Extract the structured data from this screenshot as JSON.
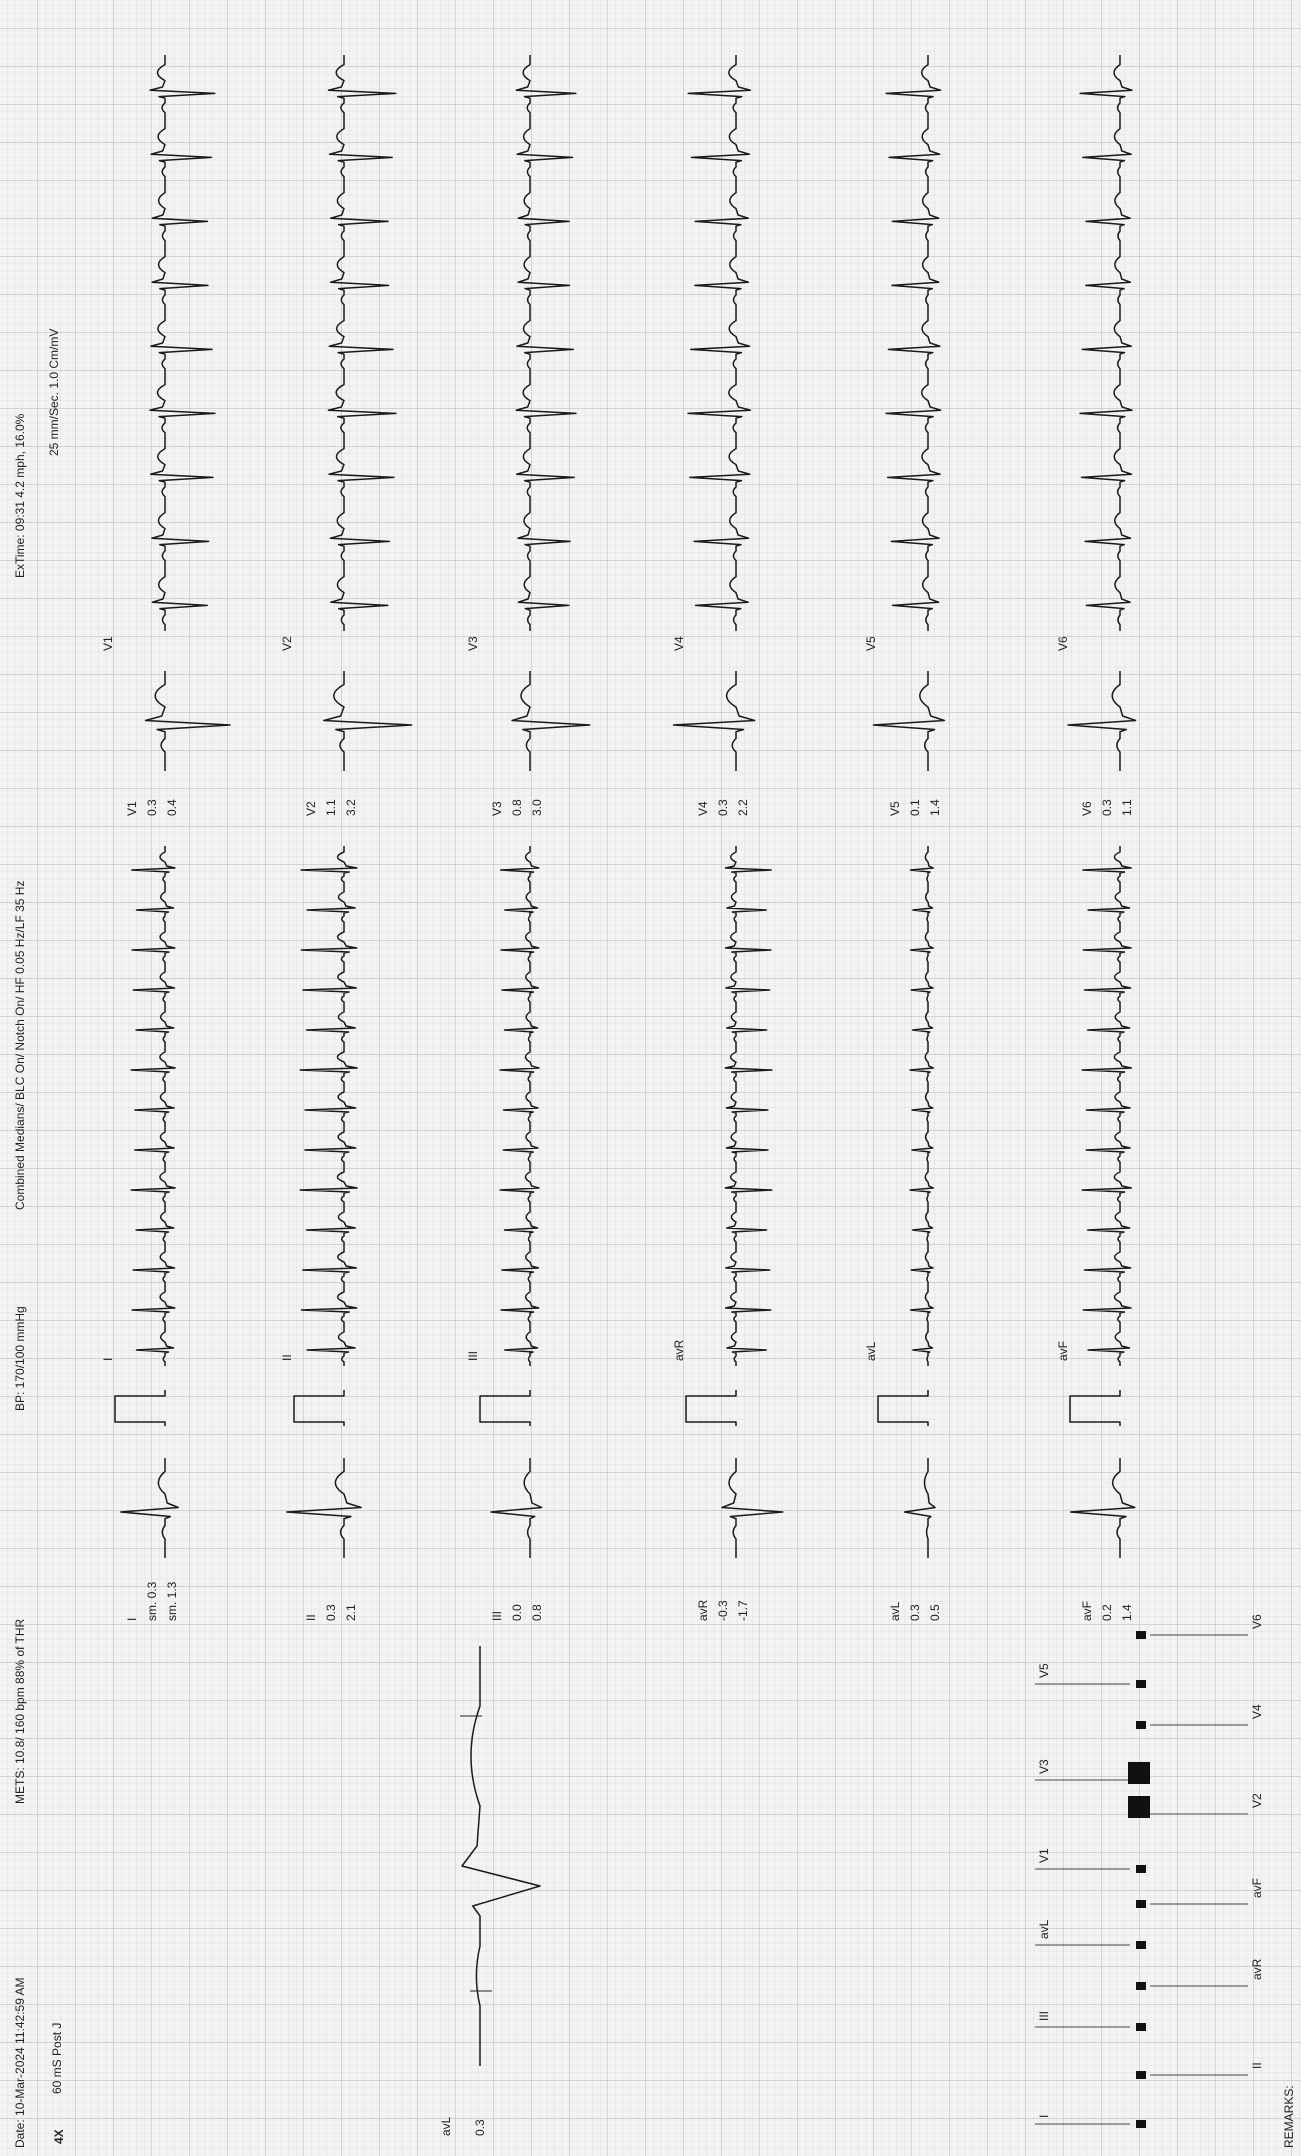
{
  "header": {
    "date": "Date: 10-Mar-2024 11:42:59 AM",
    "mets": "METS: 10.8/ 160 bpm 88% of THR",
    "bp": "BP: 170/100 mmHg",
    "filters": "Combined Medians/ BLC On/ Notch On/ HF 0.05 Hz/LF 35  Hz",
    "extime": "ExTime: 09:31  4.2 mph,  16.0%",
    "gain": "4X",
    "post_j": "60 mS Post J",
    "speed": "25 mm/Sec.  1.0 Cm/mV"
  },
  "trend": {
    "lead": "avL",
    "value": "0.3"
  },
  "leads": [
    {
      "name": "I",
      "values": [
        "sm. 0.3",
        "sm. 1.3"
      ]
    },
    {
      "name": "II",
      "values": [
        "0.3",
        "2.1"
      ]
    },
    {
      "name": "III",
      "values": [
        "0.0",
        "0.8"
      ]
    },
    {
      "name": "avR",
      "values": [
        "-0.3",
        "-1.7"
      ]
    },
    {
      "name": "avL",
      "values": [
        "0.3",
        "0.5"
      ]
    },
    {
      "name": "avF",
      "values": [
        "0.2",
        "1.4"
      ]
    },
    {
      "name": "V1",
      "values": [
        "0.3",
        "0.4"
      ]
    },
    {
      "name": "V2",
      "values": [
        "1.1",
        "3.2"
      ]
    },
    {
      "name": "V3",
      "values": [
        "0.8",
        "3.0"
      ]
    },
    {
      "name": "V4",
      "values": [
        "0.3",
        "2.2"
      ]
    },
    {
      "name": "V5",
      "values": [
        "0.1",
        "1.4"
      ]
    },
    {
      "name": "V6",
      "values": [
        "0.3",
        "1.1"
      ]
    }
  ],
  "remarks": "REMARKS:"
}
